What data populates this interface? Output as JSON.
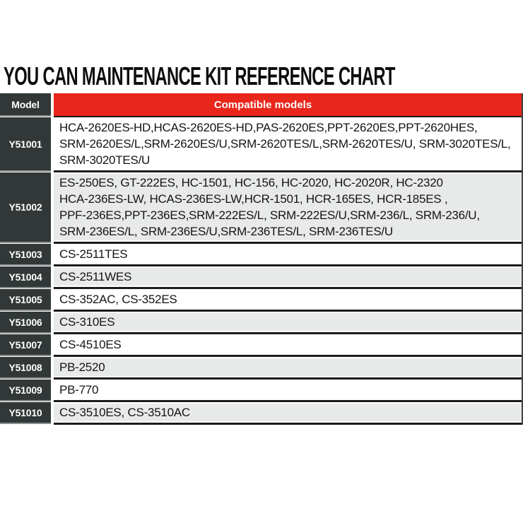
{
  "title": "YOU CAN MAINTENANCE KIT REFERENCE CHART",
  "colors": {
    "header_red": "#e9261b",
    "model_cell_dark": "#323837",
    "alt_row_gray": "#e8eae9",
    "border_black": "#1c1c1c"
  },
  "table": {
    "headers": {
      "model": "Model",
      "compatible": "Compatible models"
    },
    "rows": [
      {
        "model": "Y51001",
        "compatible": "HCA-2620ES-HD,HCAS-2620ES-HD,PAS-2620ES,PPT-2620ES,PPT-2620HES,\nSRM-2620ES/L,SRM-2620ES/U,SRM-2620TES/L,SRM-2620TES/U, SRM-3020TES/L,\nSRM-3020TES/U"
      },
      {
        "model": "Y51002",
        "compatible": "ES-250ES, GT-222ES, HC-1501, HC-156, HC-2020, HC-2020R, HC-2320\nHCA-236ES-LW, HCAS-236ES-LW,HCR-1501, HCR-165ES, HCR-185ES ,\nPPF-236ES,PPT-236ES,SRM-222ES/L, SRM-222ES/U,SRM-236/L, SRM-236/U,\nSRM-236ES/L, SRM-236ES/U,SRM-236TES/L, SRM-236TES/U"
      },
      {
        "model": "Y51003",
        "compatible": "CS-2511TES"
      },
      {
        "model": "Y51004",
        "compatible": "CS-2511WES"
      },
      {
        "model": "Y51005",
        "compatible": "CS-352AC, CS-352ES"
      },
      {
        "model": "Y51006",
        "compatible": "CS-310ES"
      },
      {
        "model": "Y51007",
        "compatible": "CS-4510ES"
      },
      {
        "model": "Y51008",
        "compatible": "PB-2520"
      },
      {
        "model": "Y51009",
        "compatible": "PB-770"
      },
      {
        "model": "Y51010",
        "compatible": "CS-3510ES, CS-3510AC"
      }
    ]
  }
}
